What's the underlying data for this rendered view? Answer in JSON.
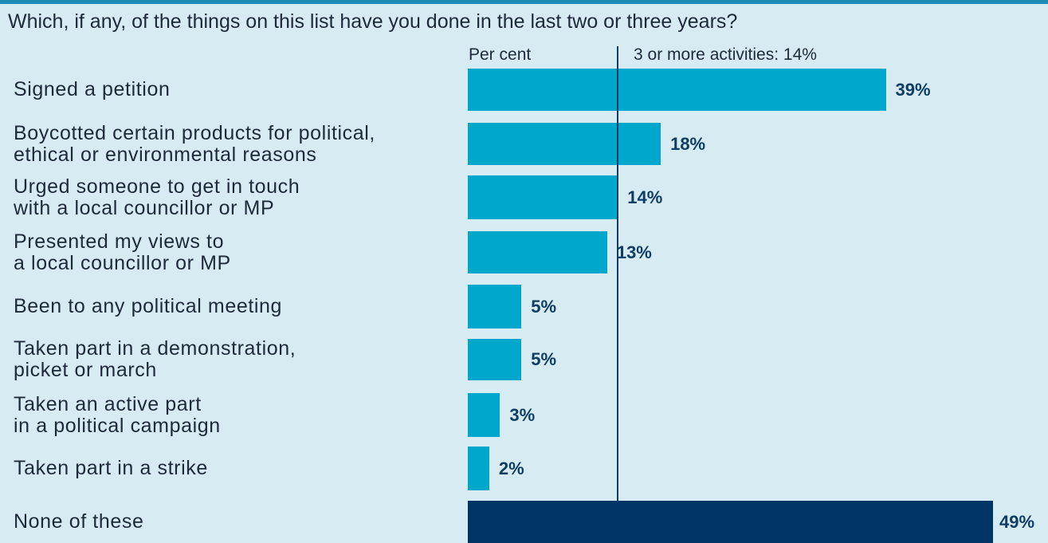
{
  "chart_data": {
    "type": "bar",
    "orientation": "horizontal",
    "title": "Which, if any, of the things on this list have you done in the last two or three years?",
    "unit_label": "Per cent",
    "reference_line": {
      "value": 14,
      "label": "3 or more activities: 14%"
    },
    "categories": [
      [
        "Signed a petition"
      ],
      [
        "Boycotted certain products for political,",
        "ethical or environmental reasons"
      ],
      [
        "Urged someone to get in touch",
        "with a local councillor or MP"
      ],
      [
        "Presented my views to",
        "a local councillor or MP"
      ],
      [
        "Been to any political meeting"
      ],
      [
        "Taken part in a demonstration,",
        "picket or march"
      ],
      [
        "Taken an active part",
        "in a political campaign"
      ],
      [
        "Taken part in a strike"
      ],
      [
        "None of these"
      ]
    ],
    "values": [
      39,
      18,
      14,
      13,
      5,
      5,
      3,
      2,
      49
    ],
    "value_labels": [
      "39%",
      "18%",
      "14%",
      "13%",
      "5%",
      "5%",
      "3%",
      "2%",
      "49%"
    ],
    "xlim": [
      0,
      49
    ],
    "grid": false,
    "legend": "none"
  },
  "colors": {
    "background": "#d6ebf2",
    "bar": "#00a7cc",
    "bar_highlight": "#003366",
    "reference_line": "#0f3d63",
    "value_text": "#0f3d63",
    "text": "#1d2a3a",
    "top_rule": "#1a8cb7"
  }
}
